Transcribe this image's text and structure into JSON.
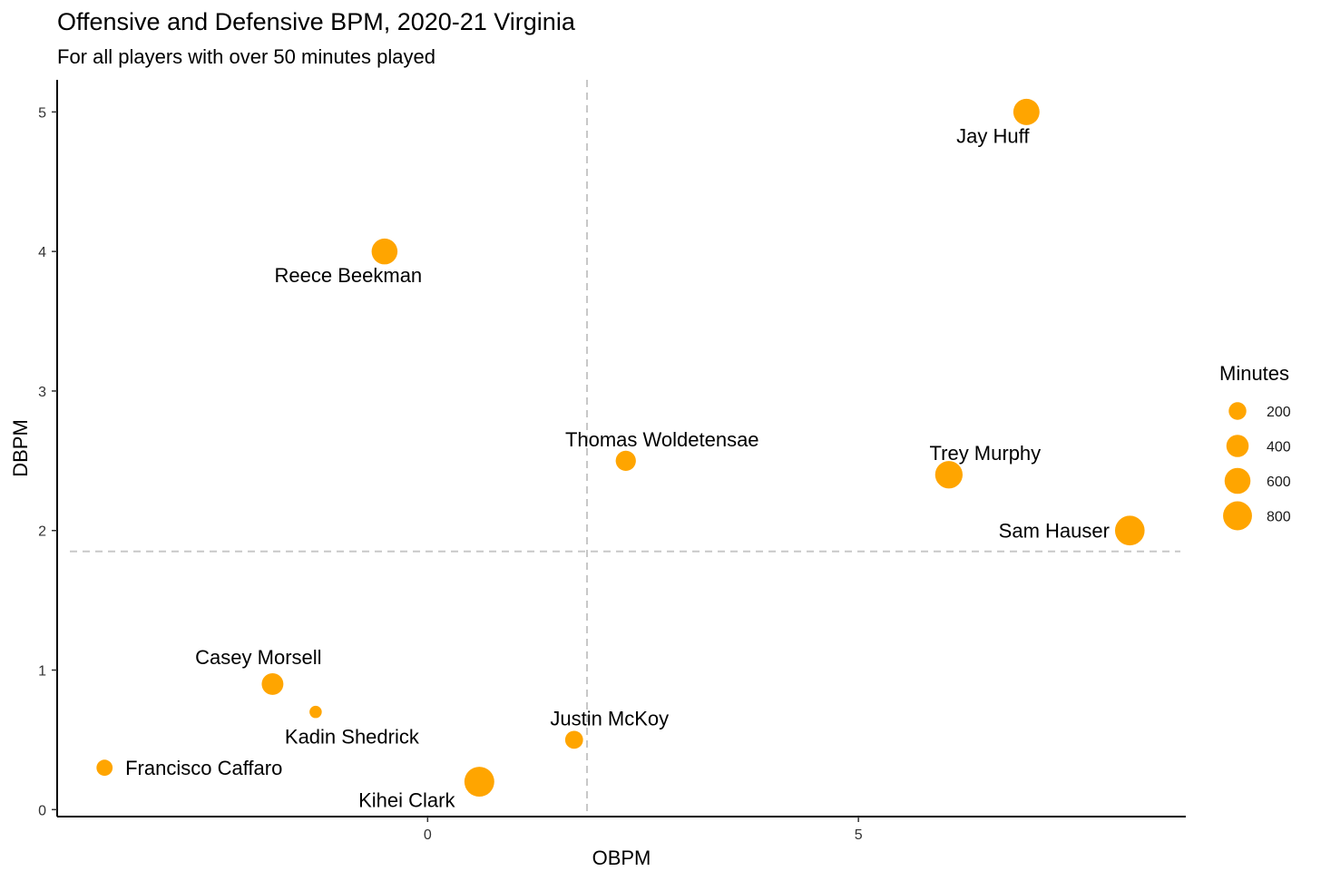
{
  "chart_data": {
    "type": "scatter",
    "title": "Offensive and Defensive BPM, 2020-21 Virginia",
    "subtitle": "For all players with over 50 minutes played",
    "xlabel": "OBPM",
    "ylabel": "DBPM",
    "xlim": [
      -4.3,
      8.8
    ],
    "ylim": [
      -0.05,
      5.23
    ],
    "x_ticks": [
      0,
      5
    ],
    "y_ticks": [
      0,
      1,
      2,
      3,
      4,
      5
    ],
    "reference_lines": {
      "vline_x": 1.85,
      "hline_y": 1.85,
      "style": "dashed",
      "color": "#c8c8c8"
    },
    "point_color": "#FFA500",
    "points": [
      {
        "name": "Jay Huff",
        "obpm": 6.95,
        "dbpm": 5.0,
        "minutes": 620,
        "label_pos": "below-left"
      },
      {
        "name": "Reece Beekman",
        "obpm": -0.5,
        "dbpm": 4.0,
        "minutes": 600,
        "label_pos": "below-left"
      },
      {
        "name": "Thomas Woldetensae",
        "obpm": 2.3,
        "dbpm": 2.5,
        "minutes": 300,
        "label_pos": "above-right"
      },
      {
        "name": "Trey Murphy",
        "obpm": 6.05,
        "dbpm": 2.4,
        "minutes": 700,
        "label_pos": "above-right"
      },
      {
        "name": "Sam Hauser",
        "obpm": 8.15,
        "dbpm": 2.0,
        "minutes": 850,
        "label_pos": "left"
      },
      {
        "name": "Casey Morsell",
        "obpm": -1.8,
        "dbpm": 0.9,
        "minutes": 370,
        "label_pos": "above-left"
      },
      {
        "name": "Kadin Shedrick",
        "obpm": -1.3,
        "dbpm": 0.7,
        "minutes": 55,
        "label_pos": "below-right"
      },
      {
        "name": "Justin McKoy",
        "obpm": 1.7,
        "dbpm": 0.5,
        "minutes": 210,
        "label_pos": "above-right"
      },
      {
        "name": "Francisco Caffaro",
        "obpm": -3.75,
        "dbpm": 0.3,
        "minutes": 150,
        "label_pos": "right"
      },
      {
        "name": "Kihei Clark",
        "obpm": 0.6,
        "dbpm": 0.2,
        "minutes": 870,
        "label_pos": "below-left"
      }
    ],
    "legend": {
      "title": "Minutes",
      "position": "right",
      "entries": [
        {
          "label": "200",
          "minutes": 200
        },
        {
          "label": "400",
          "minutes": 400
        },
        {
          "label": "600",
          "minutes": 600
        },
        {
          "label": "800",
          "minutes": 800
        }
      ]
    }
  }
}
